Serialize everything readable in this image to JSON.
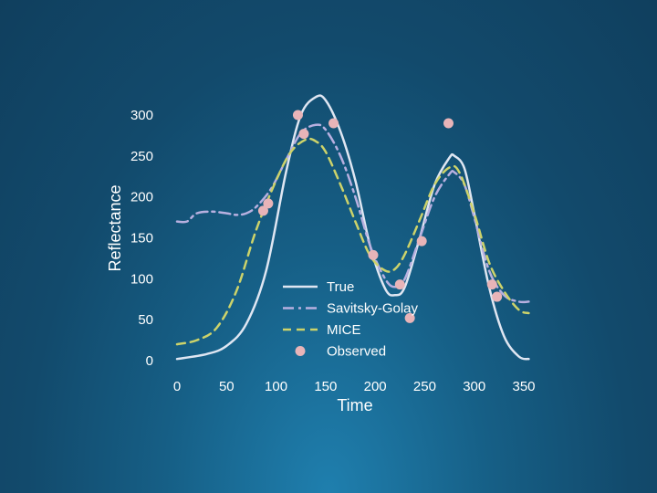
{
  "chart_data": {
    "type": "line",
    "title": "",
    "xlabel": "Time",
    "ylabel": "Reflectance",
    "xlim": [
      -5,
      355
    ],
    "ylim": [
      0,
      320
    ],
    "x_ticks": [
      0,
      50,
      100,
      150,
      200,
      250,
      300,
      350
    ],
    "y_ticks": [
      0,
      50,
      100,
      150,
      200,
      250,
      300
    ],
    "grid": false,
    "legend_position": "bottom-center",
    "series": [
      {
        "name": "True",
        "style": "solid",
        "color": "#dfe6f2",
        "x": [
          0,
          30,
          50,
          70,
          90,
          110,
          125,
          140,
          150,
          165,
          180,
          195,
          210,
          220,
          230,
          245,
          260,
          275,
          280,
          290,
          300,
          315,
          330,
          345,
          355
        ],
        "y": [
          2,
          8,
          18,
          45,
          110,
          230,
          300,
          322,
          318,
          280,
          220,
          140,
          88,
          80,
          90,
          150,
          215,
          248,
          250,
          235,
          180,
          90,
          30,
          5,
          2
        ]
      },
      {
        "name": "Savitsky-Golay",
        "style": "dashdot",
        "color": "#b8b0e0",
        "x": [
          0,
          10,
          20,
          35,
          50,
          60,
          70,
          80,
          95,
          110,
          125,
          140,
          150,
          165,
          180,
          195,
          210,
          220,
          230,
          245,
          260,
          275,
          280,
          290,
          300,
          315,
          330,
          345,
          355
        ],
        "y": [
          170,
          170,
          180,
          182,
          180,
          178,
          180,
          188,
          210,
          245,
          278,
          288,
          282,
          250,
          200,
          140,
          100,
          90,
          100,
          150,
          200,
          228,
          230,
          215,
          175,
          110,
          80,
          72,
          72
        ]
      },
      {
        "name": "MICE",
        "style": "dashed",
        "color": "#cdd36a",
        "x": [
          0,
          20,
          40,
          60,
          80,
          100,
          115,
          130,
          140,
          150,
          165,
          180,
          195,
          210,
          220,
          230,
          245,
          260,
          275,
          285,
          300,
          315,
          330,
          345,
          355
        ],
        "y": [
          20,
          25,
          40,
          85,
          160,
          220,
          255,
          270,
          268,
          255,
          215,
          170,
          128,
          110,
          112,
          130,
          172,
          215,
          236,
          230,
          180,
          120,
          85,
          62,
          58
        ]
      }
    ],
    "observed": {
      "name": "Observed",
      "color": "#e8b4b8",
      "x": [
        87,
        92,
        122,
        128,
        158,
        198,
        225,
        235,
        247,
        274,
        318,
        323
      ],
      "y": [
        183,
        192,
        300,
        277,
        290,
        129,
        93,
        52,
        146,
        290,
        93,
        78
      ]
    }
  }
}
